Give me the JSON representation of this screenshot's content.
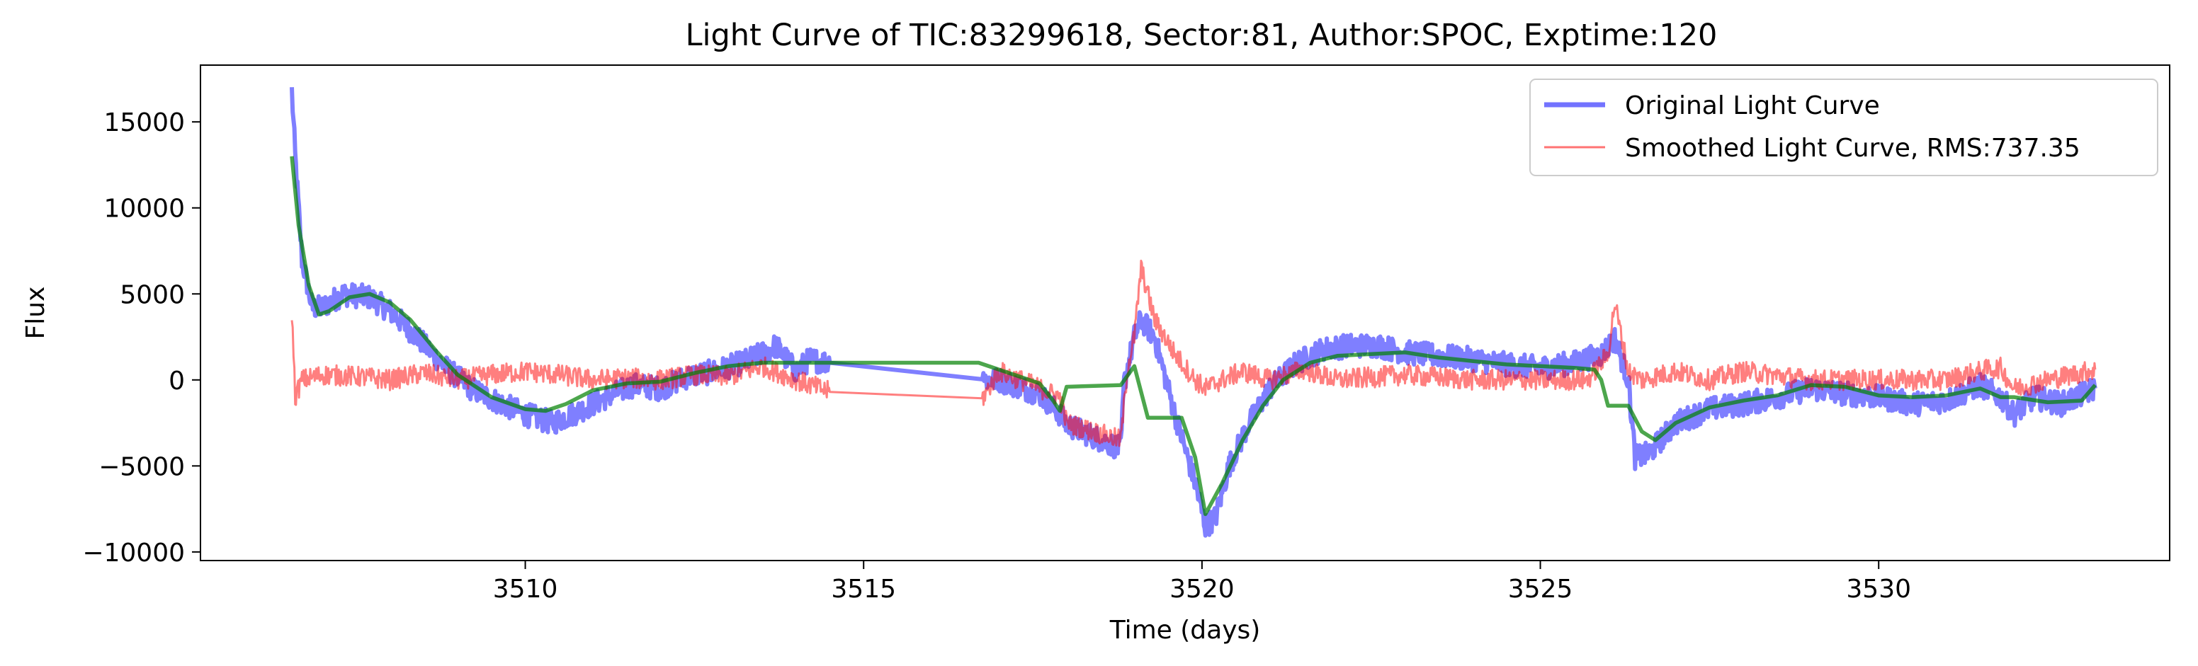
{
  "chart_data": {
    "type": "line",
    "title": "Light Curve of TIC:83299618, Sector:81, Author:SPOC, Exptime:120",
    "xlabel": "Time (days)",
    "ylabel": "Flux",
    "xlim": [
      3505.2,
      3534.3
    ],
    "ylim": [
      -10500,
      18300
    ],
    "xticks": [
      3510,
      3515,
      3520,
      3525,
      3530
    ],
    "xtick_labels": [
      "3510",
      "3515",
      "3520",
      "3525",
      "3530"
    ],
    "yticks": [
      -10000,
      -5000,
      0,
      5000,
      10000,
      15000
    ],
    "ytick_labels": [
      "−10000",
      "−5000",
      "0",
      "5000",
      "10000",
      "15000"
    ],
    "grid": false,
    "legend_position": "top-right",
    "series": [
      {
        "name": "Original Light Curve",
        "color": "#0000ff",
        "style": "noisy",
        "x": [
          3506.55,
          3506.6,
          3506.7,
          3506.85,
          3507.0,
          3507.3,
          3507.7,
          3508.0,
          3508.4,
          3508.8,
          3509.2,
          3509.6,
          3510.0,
          3510.4,
          3510.8,
          3511.2,
          3511.6,
          3512.0,
          3512.4,
          3512.8,
          3513.2,
          3513.6,
          3513.7,
          3514.0,
          3514.2,
          3514.5,
          3516.75,
          3516.8,
          3517.0,
          3517.3,
          3517.6,
          3517.9,
          3518.0,
          3518.8,
          3518.85,
          3519.0,
          3519.1,
          3519.3,
          3519.6,
          3519.9,
          3520.05,
          3520.2,
          3520.4,
          3520.7,
          3521.0,
          3521.4,
          3521.8,
          3522.2,
          3522.6,
          3523.0,
          3523.5,
          3524.0,
          3524.5,
          3525.0,
          3525.5,
          3525.9,
          3526.1,
          3526.3,
          3526.4,
          3526.6,
          3527.0,
          3527.5,
          3528.0,
          3528.5,
          3529.0,
          3529.5,
          3530.0,
          3530.5,
          3531.0,
          3531.5,
          3531.8,
          3532.0,
          3532.3,
          3532.7,
          3533.2
        ],
        "y": [
          16800,
          13000,
          7000,
          4200,
          4200,
          5000,
          4800,
          4000,
          2500,
          800,
          -500,
          -1300,
          -2000,
          -2500,
          -1800,
          -1000,
          -300,
          -500,
          200,
          500,
          1000,
          1700,
          2000,
          500,
          1200,
          1000,
          700,
          0,
          0,
          -400,
          -800,
          -2000,
          -2600,
          -4000,
          -200,
          2500,
          3500,
          2500,
          -2000,
          -6000,
          -8500,
          -8000,
          -5000,
          -2500,
          -500,
          1000,
          1800,
          2000,
          2000,
          1600,
          1400,
          1200,
          900,
          700,
          1000,
          1500,
          2400,
          0,
          -4500,
          -4300,
          -2500,
          -1700,
          -1400,
          -1000,
          -500,
          -800,
          -1000,
          -1400,
          -1200,
          -300,
          -1000,
          -2000,
          -1000,
          -1400,
          -500
        ]
      },
      {
        "name": "Smoothed Light Curve, RMS:737.35",
        "color": "#ff0000",
        "style": "noisy",
        "x": [
          3506.55,
          3506.6,
          3506.7,
          3507.0,
          3507.5,
          3508.0,
          3508.5,
          3509.0,
          3509.5,
          3510.0,
          3510.5,
          3511.0,
          3511.5,
          3512.0,
          3512.5,
          3513.0,
          3513.5,
          3514.0,
          3514.5,
          3516.75,
          3517.0,
          3517.5,
          3517.9,
          3518.0,
          3518.8,
          3518.9,
          3519.0,
          3519.1,
          3519.3,
          3519.6,
          3519.9,
          3520.05,
          3520.3,
          3520.6,
          3521.0,
          3521.5,
          3522.0,
          3523.0,
          3524.0,
          3525.0,
          3525.7,
          3526.0,
          3526.1,
          3526.3,
          3526.5,
          3527.0,
          3527.5,
          3528.0,
          3529.0,
          3530.0,
          3531.0,
          3531.6,
          3531.8,
          3532.0,
          3532.5,
          3533.2
        ],
        "y": [
          4000,
          -1000,
          0,
          300,
          200,
          0,
          400,
          0,
          300,
          500,
          300,
          0,
          100,
          0,
          300,
          200,
          800,
          0,
          -700,
          -1100,
          500,
          -300,
          -1000,
          -2500,
          -3500,
          700,
          2500,
          6500,
          3500,
          1500,
          0,
          -500,
          0,
          500,
          0,
          600,
          0,
          300,
          0,
          0,
          0,
          1500,
          4500,
          500,
          0,
          500,
          0,
          500,
          0,
          0,
          0,
          600,
          700,
          -500,
          0,
          600
        ]
      },
      {
        "name": "",
        "color": "#008000",
        "style": "smooth",
        "x": [
          3506.55,
          3506.65,
          3506.8,
          3506.95,
          3507.1,
          3507.4,
          3507.7,
          3508.0,
          3508.3,
          3508.7,
          3509.0,
          3509.5,
          3510.0,
          3510.3,
          3510.6,
          3511.0,
          3511.5,
          3512.0,
          3512.5,
          3513.0,
          3513.5,
          3514.0,
          3514.5,
          3516.7,
          3517.0,
          3517.3,
          3517.6,
          3517.8,
          3517.9,
          3518.0,
          3518.8,
          3519.0,
          3519.2,
          3519.7,
          3519.9,
          3520.05,
          3520.3,
          3520.6,
          3520.9,
          3521.2,
          3521.6,
          3522.0,
          3522.5,
          3523.0,
          3523.5,
          3524.0,
          3524.5,
          3525.0,
          3525.5,
          3525.8,
          3525.9,
          3526.0,
          3526.3,
          3526.5,
          3526.7,
          3527.0,
          3527.5,
          3528.0,
          3528.5,
          3529.0,
          3529.5,
          3530.0,
          3530.5,
          3531.0,
          3531.5,
          3531.8,
          3532.0,
          3532.5,
          3533.0,
          3533.2
        ],
        "y": [
          13000,
          9000,
          5500,
          3800,
          4000,
          4800,
          5000,
          4500,
          3500,
          1600,
          300,
          -1000,
          -1700,
          -1800,
          -1400,
          -600,
          -200,
          -100,
          400,
          800,
          1000,
          1000,
          1000,
          1000,
          600,
          200,
          -200,
          -1200,
          -1800,
          -400,
          -300,
          800,
          -2200,
          -2200,
          -4500,
          -7800,
          -6000,
          -3500,
          -1500,
          0,
          1000,
          1400,
          1500,
          1600,
          1300,
          1100,
          900,
          800,
          700,
          600,
          0,
          -1500,
          -1500,
          -3000,
          -3500,
          -2500,
          -1600,
          -1200,
          -900,
          -300,
          -400,
          -900,
          -1000,
          -900,
          -500,
          -1000,
          -1000,
          -1300,
          -1200,
          -300
        ]
      }
    ],
    "legend": [
      {
        "label": "Original Light Curve",
        "color": "#0000ff"
      },
      {
        "label": "Smoothed Light Curve, RMS:737.35",
        "color": "#ff0000"
      }
    ]
  }
}
